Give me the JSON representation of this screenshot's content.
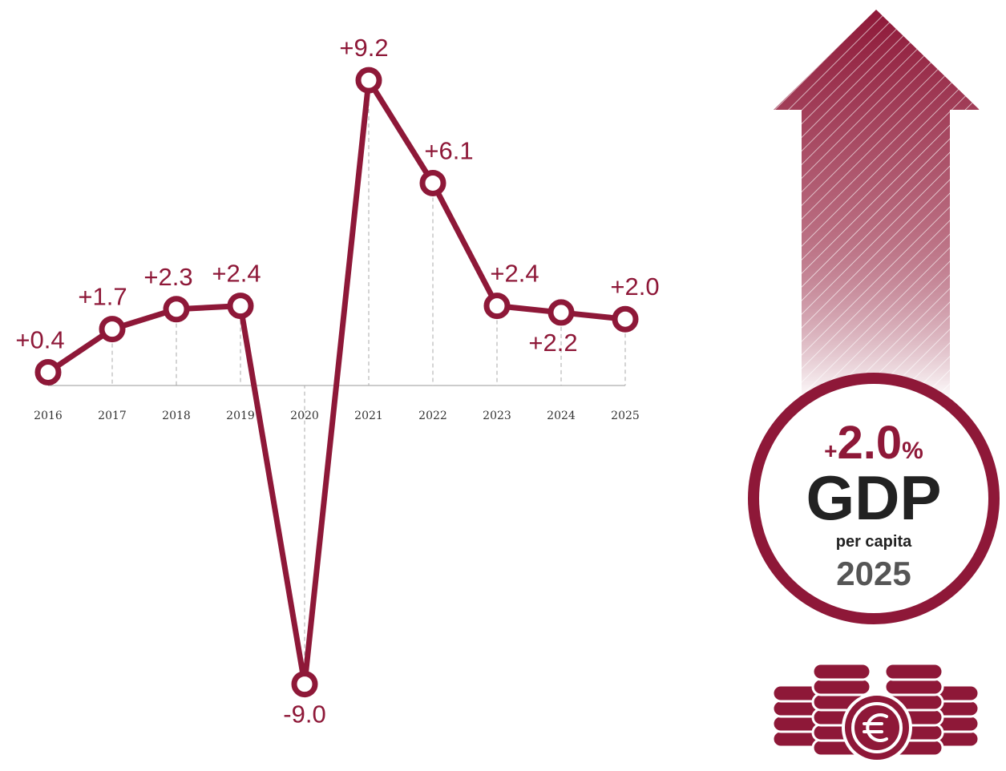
{
  "chart_data": {
    "type": "line",
    "categories": [
      "2016",
      "2017",
      "2018",
      "2019",
      "2020",
      "2021",
      "2022",
      "2023",
      "2024",
      "2025"
    ],
    "values": [
      0.4,
      1.7,
      2.3,
      2.4,
      -9.0,
      9.2,
      6.1,
      2.4,
      2.2,
      2.0
    ],
    "value_labels": [
      "+0.4",
      "+1.7",
      "+2.3",
      "+2.4",
      "-9.0",
      "+9.2",
      "+6.1",
      "+2.4",
      "+2.2",
      "+2.0"
    ],
    "color": "#8e1838",
    "ylim": [
      -10,
      10
    ]
  },
  "callout": {
    "sign": "+",
    "value": "2.0",
    "unit": "%",
    "title": "GDP",
    "subtitle": "per capita",
    "year": "2025"
  }
}
